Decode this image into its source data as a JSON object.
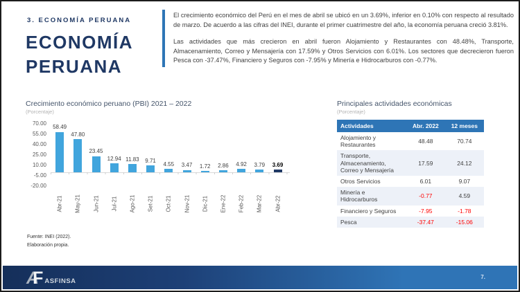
{
  "colors": {
    "navy": "#1f3864",
    "accent": "#2e75b6",
    "negative": "#ff0000",
    "footer_left": "#152f5a",
    "footer_right": "#2f74b6"
  },
  "slide": {
    "kicker": "3. ECONOMÍA PERUANA",
    "title": "ECONOMÍA PERUANA",
    "intro": {
      "para1": "El crecimiento económico del Perú en el mes de abril se ubicó en un 3.69%, inferior en 0.10% con respecto al resultado de marzo. De acuerdo a las cifras del INEI, durante el primer cuatrimestre del año, la economía peruana creció 3.81%.",
      "para2": "Las actividades que más crecieron en abril fueron Alojamiento y Restaurantes con 48.48%, Transporte, Almacenamiento, Correo y Mensajería con 17.59% y Otros Servicios con 6.01%. Los sectores que decrecieron fueron Pesca con -37.47%, Financiero y Seguros con -7.95% y Minería e Hidrocarburos con -0.77%."
    },
    "footer": {
      "source_line1": "Fuente: INEI (2022).",
      "source_line2": "Elaboración propia.",
      "logo_a": "A",
      "logo_f": "F",
      "logo_text": "ASFINSA",
      "page_number": "7."
    }
  },
  "chart_data": {
    "type": "bar",
    "title": "Crecimiento económico peruano (PBI) 2021 – 2022",
    "subtitle": "(Porcentaje)",
    "categories": [
      "Abr-21",
      "May-21",
      "Jun-21",
      "Jul-21",
      "Ago-21",
      "Set-21",
      "Oct-21",
      "Nov-21",
      "Dic-21",
      "Ene-22",
      "Feb-22",
      "Mar-22",
      "Abr-22"
    ],
    "values": [
      58.49,
      47.8,
      23.45,
      12.94,
      11.83,
      9.71,
      4.55,
      3.47,
      1.72,
      2.86,
      4.92,
      3.79,
      3.69
    ],
    "labels": [
      "58.49",
      "47.80",
      "23.45",
      "12.94",
      "11.83",
      "9.71",
      "4.55",
      "3.47",
      "1.72",
      "2.86",
      "4.92",
      "3.79",
      "3.69"
    ],
    "y_ticks": [
      "70.00",
      "55.00",
      "40.00",
      "25.00",
      "10.00",
      "-5.00",
      "-20.00"
    ],
    "ylim": [
      -20,
      70
    ],
    "grid": false,
    "legend": false,
    "bar_color": "#41a5dd",
    "highlight_color": "#1f3864",
    "highlight_index": 12,
    "xlabel": "",
    "ylabel": ""
  },
  "table": {
    "title": "Principales actividades económicas",
    "subtitle": "(Porcentaje)",
    "header": [
      "Actividades",
      "Abr. 2022",
      "12 meses"
    ],
    "header_bg": "#2e75b6",
    "negative_color": "#ff0000",
    "rows": [
      {
        "name": "Alojamiento y Restaurantes",
        "abr": "48.48",
        "m12": "70.74"
      },
      {
        "name": "Transporte, Almacenamiento, Correo y Mensajería",
        "abr": "17.59",
        "m12": "24.12"
      },
      {
        "name": "Otros Servicios",
        "abr": "6.01",
        "m12": "9.07"
      },
      {
        "name": "Minería e Hidrocarburos",
        "abr": "-0.77",
        "m12": "4.59"
      },
      {
        "name": "Financiero y Seguros",
        "abr": "-7.95",
        "m12": "-1.78"
      },
      {
        "name": "Pesca",
        "abr": "-37.47",
        "m12": "-15.06"
      }
    ]
  }
}
